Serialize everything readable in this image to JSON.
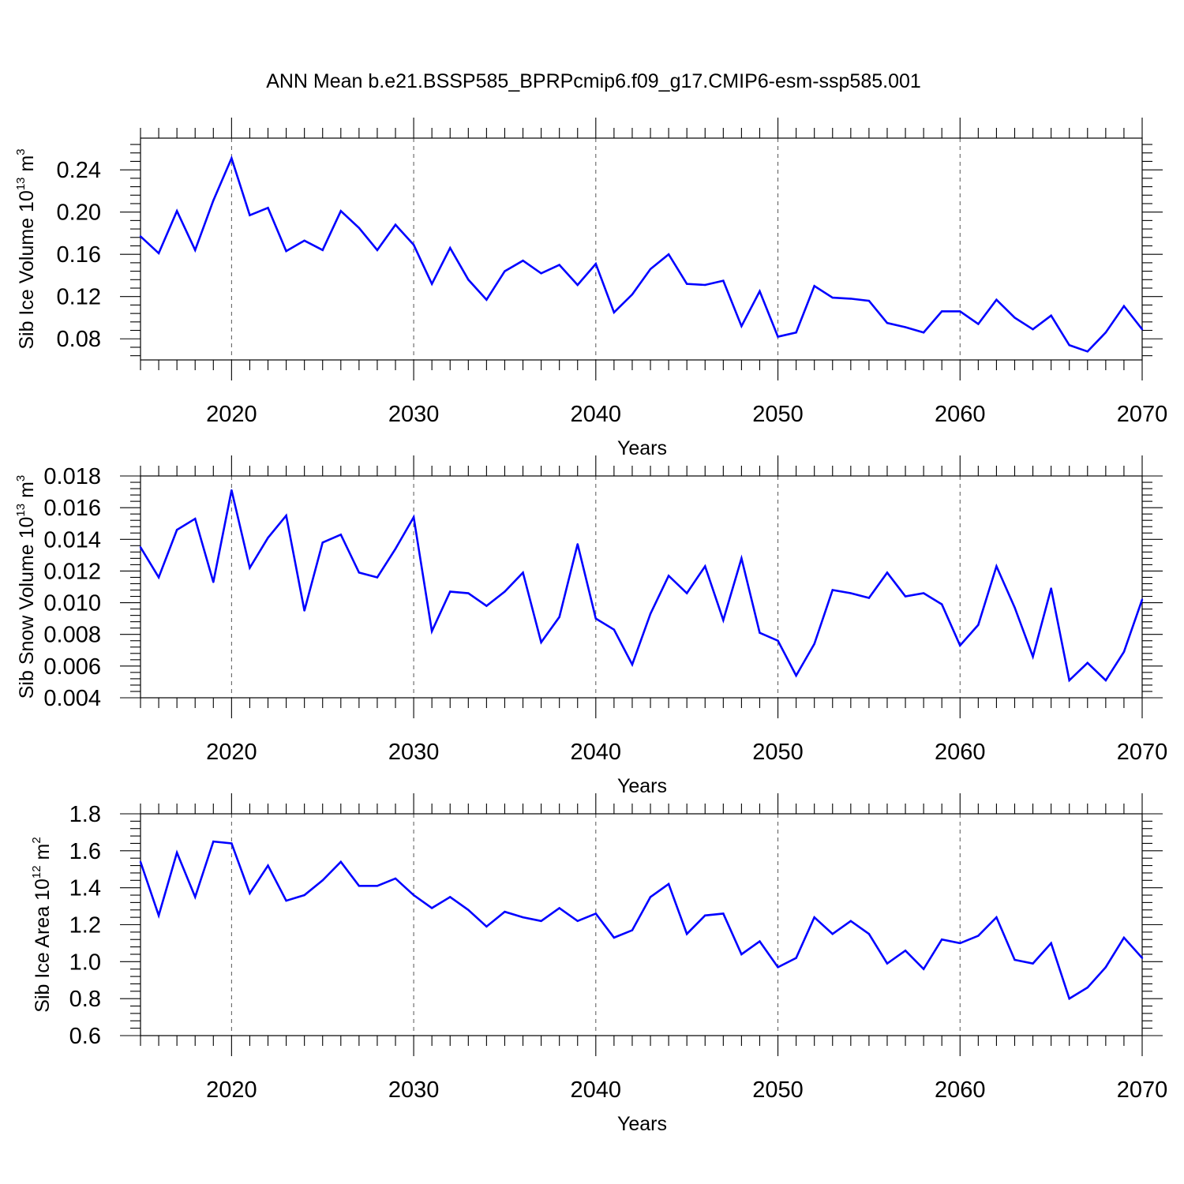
{
  "title": "ANN Mean b.e21.BSSP585_BPRPcmip6.f09_g17.CMIP6-esm-ssp585.001",
  "colors": {
    "line": "#0000ff",
    "grid": "#555555"
  },
  "chart_data": [
    {
      "type": "line",
      "ylabel": "Sib Ice Volume 10",
      "ylabel_exp": "13",
      "ylabel_unit": " m",
      "ylabel_unit_exp": "3",
      "xlabel": "Years",
      "xlim": [
        2015,
        2070
      ],
      "ylim": [
        0.06,
        0.27
      ],
      "yticks": [
        0.08,
        0.12,
        0.16,
        0.2,
        0.24
      ],
      "ytick_labels": [
        "0.08",
        "0.12",
        "0.16",
        "0.20",
        "0.24"
      ],
      "xticks": [
        2020,
        2030,
        2040,
        2050,
        2060,
        2070
      ],
      "xtick_labels": [
        "2020",
        "2030",
        "2040",
        "2050",
        "2060",
        "2070"
      ],
      "x": [
        2015,
        2016,
        2017,
        2018,
        2019,
        2020,
        2021,
        2022,
        2023,
        2024,
        2025,
        2026,
        2027,
        2028,
        2029,
        2030,
        2031,
        2032,
        2033,
        2034,
        2035,
        2036,
        2037,
        2038,
        2039,
        2040,
        2041,
        2042,
        2043,
        2044,
        2045,
        2046,
        2047,
        2048,
        2049,
        2050,
        2051,
        2052,
        2053,
        2054,
        2055,
        2056,
        2057,
        2058,
        2059,
        2060,
        2061,
        2062,
        2063,
        2064,
        2065,
        2066,
        2067,
        2068,
        2069,
        2070
      ],
      "values": [
        0.177,
        0.161,
        0.201,
        0.164,
        0.211,
        0.251,
        0.197,
        0.204,
        0.163,
        0.173,
        0.164,
        0.201,
        0.185,
        0.164,
        0.188,
        0.169,
        0.132,
        0.166,
        0.136,
        0.117,
        0.144,
        0.154,
        0.142,
        0.15,
        0.131,
        0.151,
        0.105,
        0.122,
        0.146,
        0.16,
        0.132,
        0.131,
        0.135,
        0.092,
        0.125,
        0.082,
        0.086,
        0.13,
        0.119,
        0.118,
        0.116,
        0.095,
        0.091,
        0.086,
        0.106,
        0.106,
        0.094,
        0.117,
        0.1,
        0.089,
        0.102,
        0.074,
        0.068,
        0.086,
        0.111,
        0.089
      ],
      "series": [
        {
          "values_ref": "values"
        }
      ]
    },
    {
      "type": "line",
      "ylabel": "Sib Snow Volume 10",
      "ylabel_exp": "13",
      "ylabel_unit": " m",
      "ylabel_unit_exp": "3",
      "xlabel": "Years",
      "xlim": [
        2015,
        2070
      ],
      "ylim": [
        0.004,
        0.018
      ],
      "yticks": [
        0.004,
        0.006,
        0.008,
        0.01,
        0.012,
        0.014,
        0.016,
        0.018
      ],
      "ytick_labels": [
        "0.004",
        "0.006",
        "0.008",
        "0.010",
        "0.012",
        "0.014",
        "0.016",
        "0.018"
      ],
      "xticks": [
        2020,
        2030,
        2040,
        2050,
        2060,
        2070
      ],
      "xtick_labels": [
        "2020",
        "2030",
        "2040",
        "2050",
        "2060",
        "2070"
      ],
      "x": [
        2015,
        2016,
        2017,
        2018,
        2019,
        2020,
        2021,
        2022,
        2023,
        2024,
        2025,
        2026,
        2027,
        2028,
        2029,
        2030,
        2031,
        2032,
        2033,
        2034,
        2035,
        2036,
        2037,
        2038,
        2039,
        2040,
        2041,
        2042,
        2043,
        2044,
        2045,
        2046,
        2047,
        2048,
        2049,
        2050,
        2051,
        2052,
        2053,
        2054,
        2055,
        2056,
        2057,
        2058,
        2059,
        2060,
        2061,
        2062,
        2063,
        2064,
        2065,
        2066,
        2067,
        2068,
        2069,
        2070
      ],
      "values": [
        0.0135,
        0.0116,
        0.0146,
        0.0153,
        0.0113,
        0.0171,
        0.0122,
        0.0141,
        0.0155,
        0.0095,
        0.0138,
        0.0143,
        0.0119,
        0.0116,
        0.0134,
        0.0154,
        0.0082,
        0.0107,
        0.0106,
        0.0098,
        0.0107,
        0.0119,
        0.0075,
        0.0091,
        0.0137,
        0.009,
        0.0083,
        0.0061,
        0.0093,
        0.0117,
        0.0106,
        0.0123,
        0.0089,
        0.0128,
        0.0081,
        0.0076,
        0.0054,
        0.0074,
        0.0108,
        0.0106,
        0.0103,
        0.0119,
        0.0104,
        0.0106,
        0.0099,
        0.0073,
        0.0086,
        0.0123,
        0.0097,
        0.0066,
        0.0109,
        0.0051,
        0.0062,
        0.0051,
        0.0069,
        0.0102
      ]
    },
    {
      "type": "line",
      "ylabel": "Sib Ice Area 10",
      "ylabel_exp": "12",
      "ylabel_unit": " m",
      "ylabel_unit_exp": "2",
      "xlabel": "Years",
      "xlim": [
        2015,
        2070
      ],
      "ylim": [
        0.6,
        1.8
      ],
      "yticks": [
        0.6,
        0.8,
        1.0,
        1.2,
        1.4,
        1.6,
        1.8
      ],
      "ytick_labels": [
        "0.6",
        "0.8",
        "1.0",
        "1.2",
        "1.4",
        "1.6",
        "1.8"
      ],
      "xticks": [
        2020,
        2030,
        2040,
        2050,
        2060,
        2070
      ],
      "xtick_labels": [
        "2020",
        "2030",
        "2040",
        "2050",
        "2060",
        "2070"
      ],
      "x": [
        2015,
        2016,
        2017,
        2018,
        2019,
        2020,
        2021,
        2022,
        2023,
        2024,
        2025,
        2026,
        2027,
        2028,
        2029,
        2030,
        2031,
        2032,
        2033,
        2034,
        2035,
        2036,
        2037,
        2038,
        2039,
        2040,
        2041,
        2042,
        2043,
        2044,
        2045,
        2046,
        2047,
        2048,
        2049,
        2050,
        2051,
        2052,
        2053,
        2054,
        2055,
        2056,
        2057,
        2058,
        2059,
        2060,
        2061,
        2062,
        2063,
        2064,
        2065,
        2066,
        2067,
        2068,
        2069,
        2070
      ],
      "values": [
        1.54,
        1.25,
        1.59,
        1.35,
        1.65,
        1.64,
        1.37,
        1.52,
        1.33,
        1.36,
        1.44,
        1.54,
        1.41,
        1.41,
        1.45,
        1.36,
        1.29,
        1.35,
        1.28,
        1.19,
        1.27,
        1.24,
        1.22,
        1.29,
        1.22,
        1.26,
        1.13,
        1.17,
        1.35,
        1.42,
        1.15,
        1.25,
        1.26,
        1.04,
        1.11,
        0.97,
        1.02,
        1.24,
        1.15,
        1.22,
        1.15,
        0.99,
        1.06,
        0.96,
        1.12,
        1.1,
        1.14,
        1.24,
        1.01,
        0.99,
        1.1,
        0.8,
        0.86,
        0.97,
        1.13,
        1.02
      ]
    }
  ]
}
